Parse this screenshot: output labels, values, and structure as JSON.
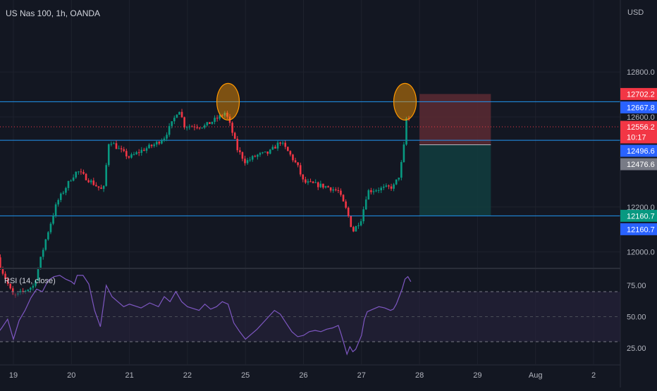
{
  "chart_data": {
    "type": "candlestick",
    "title": "US Nas 100, 1h, OANDA",
    "currency": "USD",
    "x_tick_labels": [
      "19",
      "20",
      "21",
      "22",
      "25",
      "26",
      "27",
      "28",
      "29",
      "Aug",
      "2"
    ],
    "y_tick_labels": [
      "12800.0",
      "12600.0",
      "12200.0",
      "12000.0"
    ],
    "ylim": [
      11930,
      13120
    ],
    "horizontal_levels": [
      12667.8,
      12496.6,
      12160.7
    ],
    "current_price": 12556.2,
    "price_tags": [
      {
        "value": "12702.2",
        "price": 12702.2,
        "color": "#f23645"
      },
      {
        "value": "12667.8",
        "price": 12667.8,
        "color": "#2962ff"
      },
      {
        "value": "12556.2",
        "price": 12556.2,
        "color": "#f23645",
        "sub": "10:17"
      },
      {
        "value": "12496.6",
        "price": 12496.6,
        "color": "#2962ff"
      },
      {
        "value": "12476.6",
        "price": 12476.6,
        "color": "#787b86"
      },
      {
        "value": "12160.7",
        "price": 12160.7,
        "color": "#089981"
      },
      {
        "value": "12160.7",
        "price": 12160.7,
        "color": "#2962ff"
      }
    ],
    "short_position": {
      "entry": 12476.6,
      "stop": 12702.2,
      "target": 12160.7
    },
    "highlight_circles": [
      {
        "day_index": 3.7,
        "price": 12667.8
      },
      {
        "day_index": 6.75,
        "price": 12667.8
      }
    ],
    "price_path": [
      [
        -0.4,
        12150
      ],
      [
        -0.25,
        11950
      ],
      [
        0.0,
        11800
      ],
      [
        0.35,
        11850
      ],
      [
        0.55,
        12050
      ],
      [
        0.75,
        12220
      ],
      [
        1.0,
        12330
      ],
      [
        1.1,
        12360
      ],
      [
        1.4,
        12300
      ],
      [
        1.55,
        12270
      ],
      [
        1.65,
        12500
      ],
      [
        1.8,
        12460
      ],
      [
        2.0,
        12420
      ],
      [
        2.2,
        12450
      ],
      [
        2.45,
        12480
      ],
      [
        2.6,
        12510
      ],
      [
        2.75,
        12580
      ],
      [
        2.85,
        12640
      ],
      [
        2.95,
        12560
      ],
      [
        3.3,
        12560
      ],
      [
        3.55,
        12600
      ],
      [
        3.65,
        12620
      ],
      [
        3.7,
        12590
      ],
      [
        3.8,
        12510
      ],
      [
        3.85,
        12460
      ],
      [
        4.0,
        12400
      ],
      [
        4.2,
        12430
      ],
      [
        4.4,
        12440
      ],
      [
        4.6,
        12490
      ],
      [
        4.75,
        12440
      ],
      [
        4.9,
        12380
      ],
      [
        5.0,
        12310
      ],
      [
        5.2,
        12300
      ],
      [
        5.4,
        12290
      ],
      [
        5.6,
        12270
      ],
      [
        5.75,
        12180
      ],
      [
        5.85,
        12090
      ],
      [
        6.0,
        12150
      ],
      [
        6.1,
        12270
      ],
      [
        6.3,
        12280
      ],
      [
        6.55,
        12290
      ],
      [
        6.65,
        12340
      ],
      [
        6.72,
        12440
      ],
      [
        6.78,
        12610
      ],
      [
        6.85,
        12570
      ]
    ],
    "rsi": {
      "label": "RSI (14, close)",
      "ylim": [
        12,
        88
      ],
      "y_tick_labels": [
        "75.00",
        "50.00",
        "25.00"
      ],
      "levels": [
        70,
        50,
        30
      ],
      "values": [
        [
          -0.4,
          60
        ],
        [
          -0.3,
          35
        ],
        [
          -0.2,
          41
        ],
        [
          -0.1,
          48
        ],
        [
          0.0,
          32
        ],
        [
          0.1,
          47
        ],
        [
          0.2,
          55
        ],
        [
          0.3,
          65
        ],
        [
          0.4,
          72
        ],
        [
          0.5,
          70
        ],
        [
          0.6,
          79
        ],
        [
          0.7,
          82
        ],
        [
          0.8,
          83
        ],
        [
          0.9,
          80
        ],
        [
          1.0,
          78
        ],
        [
          1.05,
          76
        ],
        [
          1.1,
          83
        ],
        [
          1.2,
          83
        ],
        [
          1.3,
          76
        ],
        [
          1.4,
          55
        ],
        [
          1.5,
          42
        ],
        [
          1.6,
          75
        ],
        [
          1.7,
          66
        ],
        [
          1.8,
          62
        ],
        [
          1.9,
          58
        ],
        [
          2.0,
          60
        ],
        [
          2.2,
          57
        ],
        [
          2.35,
          61
        ],
        [
          2.5,
          58
        ],
        [
          2.6,
          66
        ],
        [
          2.7,
          62
        ],
        [
          2.8,
          70
        ],
        [
          2.9,
          62
        ],
        [
          3.0,
          58
        ],
        [
          3.2,
          55
        ],
        [
          3.3,
          60
        ],
        [
          3.4,
          56
        ],
        [
          3.5,
          58
        ],
        [
          3.6,
          62
        ],
        [
          3.7,
          60
        ],
        [
          3.8,
          45
        ],
        [
          3.9,
          38
        ],
        [
          4.0,
          32
        ],
        [
          4.1,
          36
        ],
        [
          4.2,
          40
        ],
        [
          4.3,
          45
        ],
        [
          4.4,
          50
        ],
        [
          4.5,
          55
        ],
        [
          4.6,
          52
        ],
        [
          4.7,
          45
        ],
        [
          4.8,
          38
        ],
        [
          4.9,
          34
        ],
        [
          5.0,
          35
        ],
        [
          5.1,
          38
        ],
        [
          5.2,
          39
        ],
        [
          5.3,
          38
        ],
        [
          5.4,
          40
        ],
        [
          5.5,
          41
        ],
        [
          5.6,
          43
        ],
        [
          5.65,
          36
        ],
        [
          5.7,
          28
        ],
        [
          5.75,
          20
        ],
        [
          5.8,
          26
        ],
        [
          5.85,
          22
        ],
        [
          5.9,
          24
        ],
        [
          6.0,
          35
        ],
        [
          6.05,
          48
        ],
        [
          6.1,
          54
        ],
        [
          6.2,
          56
        ],
        [
          6.3,
          58
        ],
        [
          6.4,
          57
        ],
        [
          6.5,
          55
        ],
        [
          6.55,
          56
        ],
        [
          6.6,
          60
        ],
        [
          6.65,
          66
        ],
        [
          6.7,
          72
        ],
        [
          6.75,
          80
        ],
        [
          6.8,
          82
        ],
        [
          6.85,
          78
        ]
      ]
    },
    "colors": {
      "background": "#131722",
      "grid": "#1e222d",
      "up": "#089981",
      "down": "#f23645",
      "level_line": "#2196f3",
      "circle": "#ff9800",
      "rsi_line": "#7e57c2",
      "rsi_band": "#2a2540",
      "stop_zone": "#5c2a33",
      "target_zone": "#123d3e"
    }
  }
}
